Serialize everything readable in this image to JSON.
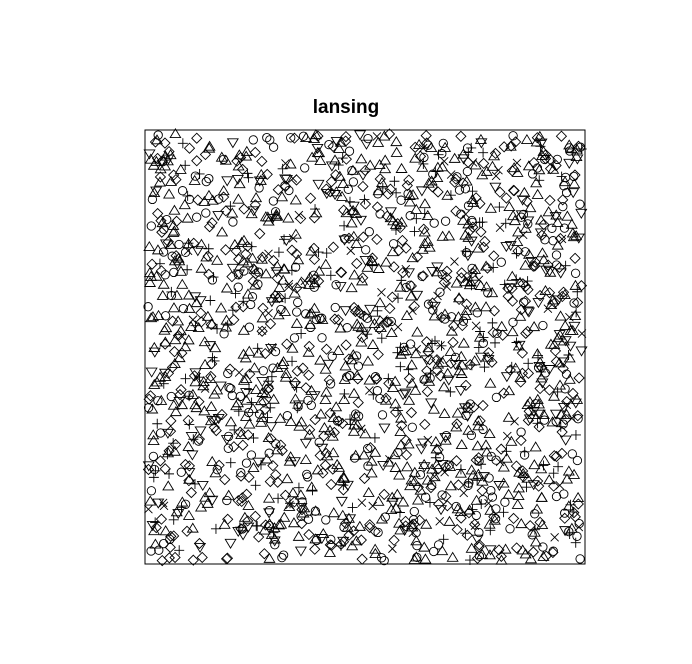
{
  "chart_data": {
    "type": "scatter",
    "title": "lansing",
    "xlabel": "",
    "ylabel": "",
    "xlim": [
      0,
      1
    ],
    "ylim": [
      0,
      1
    ],
    "axes_drawn": false,
    "grid": false,
    "legend": "none",
    "marks_colour": "#000000",
    "series": [
      {
        "marker": "circle"
      },
      {
        "marker": "triangle-up"
      },
      {
        "marker": "plus"
      },
      {
        "marker": "cross"
      },
      {
        "marker": "diamond"
      },
      {
        "marker": "triangle-down"
      }
    ]
  }
}
